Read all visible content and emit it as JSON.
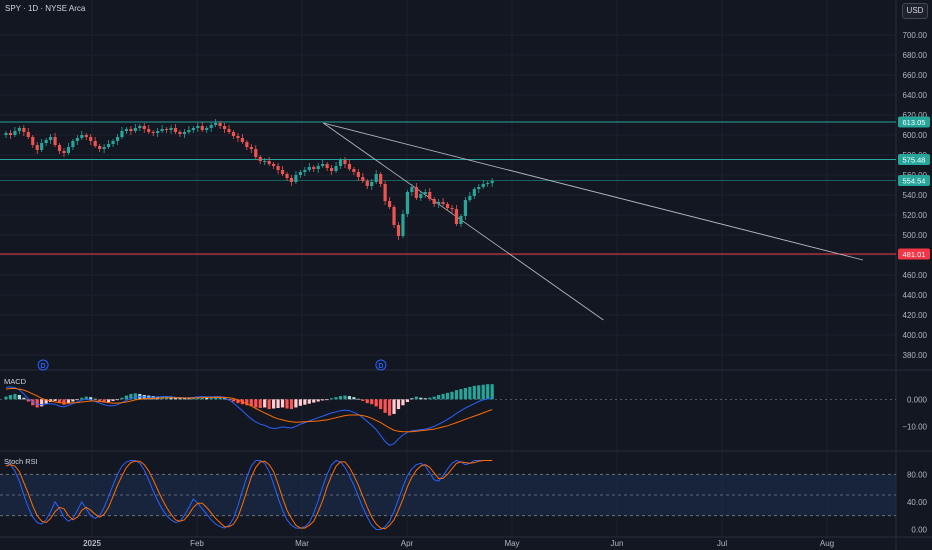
{
  "header": {
    "symbol_title": "SPY · 1D · NYSE Arca",
    "currency_button": "USD"
  },
  "colors": {
    "background": "#131722",
    "grid": "#1e222d",
    "up": "#26a69a",
    "down": "#ef5350",
    "line_white": "#b2b5be",
    "resistance": "#26a69a",
    "support": "#f23645",
    "macd": "#2962ff",
    "signal": "#ff6d00",
    "rsi_k": "#2962ff",
    "rsi_d": "#ff6d00",
    "rsi_band": "#1c3050"
  },
  "event_markers": [
    "D",
    "D"
  ],
  "chart_data": [
    {
      "type": "candlestick",
      "title": "SPY · 1D · NYSE Arca",
      "x_axis": {
        "labels": [
          "2025",
          "Feb",
          "Mar",
          "Apr",
          "May",
          "Jun",
          "Jul",
          "Aug"
        ]
      },
      "y_axis": {
        "ticks": [
          380,
          400,
          420,
          440,
          460,
          480,
          500,
          520,
          540,
          560,
          580,
          600,
          620,
          640,
          660,
          680,
          700
        ],
        "ylim": [
          370,
          710
        ]
      },
      "horizontal_levels": [
        {
          "label": "613.05",
          "value": 613.05,
          "color": "#26a69a"
        },
        {
          "label": "575.48",
          "value": 575.48,
          "color": "#26a69a"
        },
        {
          "label": "554.54",
          "value": 554.54,
          "color": "#26a69a",
          "style": "thin"
        },
        {
          "label": "481.01",
          "value": 481.01,
          "color": "#f23645"
        }
      ],
      "trendlines": [
        {
          "from": {
            "day": 77,
            "value": 612
          },
          "to": {
            "day": 208,
            "value": 475
          }
        },
        {
          "from": {
            "day": 77,
            "value": 612
          },
          "to": {
            "day": 145,
            "value": 415
          }
        }
      ],
      "candles_close": [
        602,
        600,
        604,
        607,
        603,
        598,
        590,
        585,
        592,
        595,
        598,
        590,
        584,
        582,
        588,
        594,
        597,
        600,
        598,
        594,
        589,
        586,
        588,
        591,
        594,
        598,
        604,
        606,
        604,
        607,
        609,
        606,
        603,
        602,
        604,
        606,
        605,
        607,
        603,
        601,
        603,
        605,
        607,
        609,
        605,
        607,
        610,
        612,
        609,
        606,
        603,
        599,
        597,
        593,
        588,
        586,
        578,
        574,
        574,
        571,
        569,
        565,
        561,
        557,
        553,
        560,
        563,
        565,
        568,
        566,
        569,
        571,
        567,
        564,
        569,
        575,
        571,
        566,
        563,
        558,
        554,
        549,
        553,
        561,
        551,
        534,
        528,
        510,
        499,
        521,
        543,
        548,
        537,
        541,
        543,
        536,
        531,
        533,
        531,
        527,
        526,
        511,
        519,
        535,
        539,
        546,
        548,
        551,
        552,
        554
      ],
      "candles_open": [
        600,
        602,
        600,
        604,
        607,
        603,
        598,
        590,
        585,
        592,
        595,
        598,
        590,
        584,
        582,
        588,
        594,
        597,
        600,
        598,
        594,
        589,
        586,
        588,
        591,
        594,
        598,
        604,
        606,
        604,
        607,
        609,
        606,
        603,
        602,
        604,
        606,
        605,
        607,
        603,
        601,
        603,
        605,
        607,
        609,
        605,
        607,
        610,
        612,
        609,
        606,
        603,
        599,
        597,
        593,
        588,
        586,
        578,
        574,
        574,
        571,
        569,
        565,
        561,
        557,
        553,
        560,
        563,
        565,
        568,
        566,
        569,
        571,
        567,
        564,
        569,
        575,
        571,
        566,
        563,
        558,
        554,
        549,
        553,
        561,
        551,
        534,
        528,
        510,
        499,
        521,
        543,
        548,
        537,
        541,
        543,
        536,
        531,
        533,
        531,
        527,
        526,
        511,
        519,
        535,
        539,
        546,
        548,
        551,
        552
      ],
      "first_candle_day": 0,
      "last_candle_day": 118
    },
    {
      "type": "bar_line",
      "title": "MACD",
      "y_axis": {
        "ticks": [
          0.0,
          -10.0
        ],
        "tick_labels": [
          "0.000",
          "−10.00"
        ],
        "ylim": [
          -18,
          9
        ]
      },
      "histogram": [
        1.0,
        1.6,
        2.0,
        1.6,
        0.6,
        -0.8,
        -2.2,
        -3.0,
        -2.6,
        -1.6,
        -1.0,
        -0.6,
        -1.4,
        -2.0,
        -1.6,
        -0.8,
        -0.2,
        0.6,
        1.0,
        0.8,
        0.2,
        -0.6,
        -1.2,
        -1.0,
        -0.6,
        -0.2,
        0.6,
        1.4,
        2.0,
        2.2,
        2.0,
        1.6,
        1.4,
        1.2,
        1.0,
        1.1,
        1.2,
        1.1,
        0.8,
        0.5,
        0.4,
        0.3,
        0.4,
        0.6,
        0.7,
        0.6,
        0.6,
        0.7,
        0.7,
        0.4,
        -0.2,
        -0.8,
        -1.4,
        -1.8,
        -2.2,
        -2.6,
        -3.0,
        -3.2,
        -3.0,
        -3.6,
        -3.4,
        -3.2,
        -3.0,
        -3.4,
        -3.6,
        -3.0,
        -2.4,
        -2.0,
        -1.6,
        -1.2,
        -0.8,
        -0.4,
        -0.2,
        0.4,
        0.8,
        1.2,
        1.4,
        1.2,
        0.8,
        0.2,
        -0.6,
        -1.4,
        -1.8,
        -2.6,
        -3.6,
        -5.0,
        -6.0,
        -5.4,
        -3.6,
        -2.2,
        -1.0,
        0.4,
        1.0,
        0.6,
        0.4,
        0.6,
        1.0,
        1.6,
        2.0,
        2.4,
        2.8,
        3.4,
        3.8,
        4.2,
        4.6,
        5.0,
        5.2,
        5.4,
        5.6,
        5.6
      ],
      "macd_line": [
        4.5,
        4.6,
        4.3,
        3.5,
        2.0,
        0.2,
        -1.0,
        -1.8,
        -2.0,
        -1.7,
        -1.6,
        -1.8,
        -2.5,
        -2.8,
        -2.2,
        -1.6,
        -1.0,
        -0.3,
        0.0,
        -0.2,
        -0.8,
        -1.4,
        -2.0,
        -2.4,
        -2.4,
        -2.0,
        -1.2,
        -0.4,
        0.3,
        0.8,
        1.0,
        0.9,
        0.8,
        0.8,
        0.9,
        1.0,
        1.0,
        0.9,
        0.7,
        0.6,
        0.6,
        0.6,
        0.7,
        0.9,
        1.0,
        0.9,
        0.9,
        1.0,
        1.0,
        0.6,
        -0.2,
        -1.4,
        -2.8,
        -4.2,
        -5.8,
        -7.2,
        -8.4,
        -9.2,
        -9.6,
        -10.4,
        -10.8,
        -10.6,
        -10.2,
        -10.4,
        -10.6,
        -10.0,
        -9.2,
        -8.6,
        -8.0,
        -7.4,
        -6.8,
        -6.2,
        -5.6,
        -5.0,
        -4.6,
        -4.2,
        -4.0,
        -4.2,
        -4.8,
        -5.6,
        -6.8,
        -8.2,
        -9.6,
        -11.2,
        -13.4,
        -15.6,
        -17.0,
        -16.4,
        -14.6,
        -13.2,
        -12.2,
        -11.6,
        -11.4,
        -11.2,
        -11.0,
        -10.6,
        -10.0,
        -9.2,
        -8.4,
        -7.4,
        -6.4,
        -5.2,
        -4.2,
        -3.2,
        -2.4,
        -1.6,
        -0.8,
        -0.2,
        0.2,
        0.6
      ],
      "signal_line": [
        3.8,
        4.0,
        4.0,
        3.8,
        3.4,
        2.8,
        2.0,
        1.2,
        0.4,
        -0.2,
        -0.6,
        -1.0,
        -1.2,
        -1.4,
        -1.4,
        -1.3,
        -1.2,
        -1.0,
        -0.8,
        -0.6,
        -0.6,
        -0.8,
        -1.0,
        -1.2,
        -1.4,
        -1.4,
        -1.2,
        -1.0,
        -0.6,
        -0.2,
        0.0,
        0.2,
        0.3,
        0.4,
        0.4,
        0.5,
        0.6,
        0.6,
        0.6,
        0.6,
        0.5,
        0.5,
        0.5,
        0.6,
        0.6,
        0.7,
        0.7,
        0.7,
        0.8,
        0.7,
        0.6,
        0.3,
        -0.2,
        -0.9,
        -1.6,
        -2.4,
        -3.4,
        -4.2,
        -5.0,
        -5.8,
        -6.6,
        -7.2,
        -7.6,
        -8.0,
        -8.3,
        -8.5,
        -8.4,
        -8.3,
        -8.2,
        -8.1,
        -8.0,
        -7.8,
        -7.6,
        -7.2,
        -6.8,
        -6.4,
        -6.0,
        -5.8,
        -5.8,
        -5.8,
        -6.0,
        -6.4,
        -7.0,
        -7.8,
        -8.6,
        -9.6,
        -10.6,
        -11.4,
        -11.8,
        -12.0,
        -12.0,
        -12.0,
        -11.8,
        -11.6,
        -11.4,
        -11.2,
        -11.0,
        -10.6,
        -10.2,
        -9.8,
        -9.2,
        -8.6,
        -8.0,
        -7.4,
        -6.8,
        -6.2,
        -5.6,
        -5.0,
        -4.4,
        -3.8
      ]
    },
    {
      "type": "line",
      "title": "Stoch RSI",
      "y_axis": {
        "ticks": [
          80.0,
          40.0,
          0.0
        ],
        "tick_labels": [
          "80.00",
          "40.00",
          "0.00"
        ],
        "ylim": [
          -8,
          108
        ]
      },
      "band": {
        "upper": 80,
        "middle": 50,
        "lower": 20
      },
      "series": [
        {
          "key": "k",
          "values": [
            96,
            94,
            85,
            70,
            50,
            32,
            18,
            10,
            8,
            14,
            26,
            40,
            30,
            18,
            12,
            16,
            28,
            40,
            30,
            20,
            16,
            20,
            32,
            48,
            64,
            80,
            92,
            98,
            100,
            100,
            96,
            86,
            72,
            56,
            42,
            30,
            20,
            14,
            10,
            12,
            20,
            32,
            44,
            38,
            30,
            22,
            14,
            8,
            4,
            2,
            6,
            16,
            34,
            56,
            76,
            92,
            100,
            100,
            96,
            84,
            66,
            46,
            28,
            14,
            6,
            2,
            2,
            4,
            10,
            24,
            42,
            62,
            80,
            94,
            100,
            98,
            90,
            78,
            64,
            48,
            32,
            18,
            6,
            0,
            0,
            4,
            12,
            26,
            44,
            62,
            78,
            88,
            94,
            96,
            92,
            82,
            72,
            70,
            78,
            88,
            96,
            100,
            98,
            94,
            96,
            100,
            100,
            100,
            100,
            100
          ]
        },
        {
          "key": "d",
          "values": [
            92,
            94,
            92,
            84,
            68,
            52,
            34,
            20,
            12,
            10,
            16,
            26,
            32,
            30,
            20,
            14,
            18,
            28,
            32,
            28,
            22,
            18,
            22,
            32,
            48,
            64,
            78,
            90,
            97,
            99,
            99,
            94,
            85,
            72,
            58,
            44,
            32,
            22,
            14,
            12,
            14,
            22,
            32,
            38,
            38,
            32,
            24,
            16,
            10,
            4,
            4,
            8,
            18,
            36,
            56,
            76,
            90,
            98,
            99,
            94,
            84,
            66,
            46,
            28,
            16,
            6,
            2,
            2,
            6,
            12,
            26,
            42,
            62,
            78,
            92,
            98,
            98,
            90,
            78,
            64,
            48,
            32,
            18,
            8,
            2,
            1,
            6,
            14,
            28,
            44,
            62,
            76,
            86,
            92,
            94,
            90,
            82,
            74,
            74,
            80,
            88,
            96,
            98,
            97,
            96,
            97,
            99,
            100,
            100,
            100
          ]
        }
      ]
    }
  ]
}
